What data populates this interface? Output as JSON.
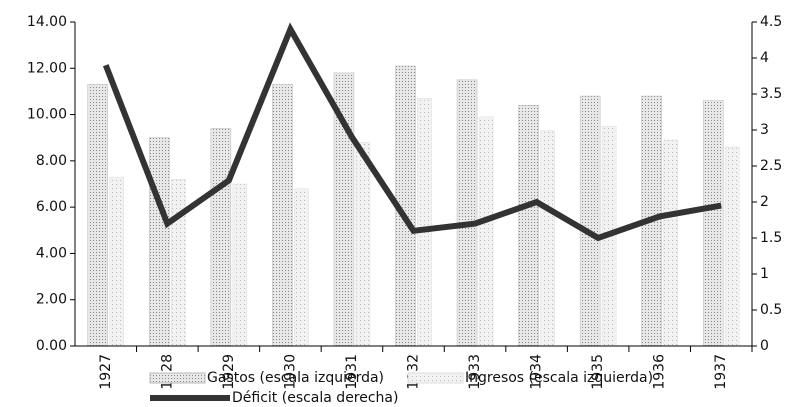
{
  "chart_data": {
    "type": "bar-line",
    "categories": [
      "1927",
      "1928",
      "1929",
      "1930",
      "1931",
      "1932",
      "1933",
      "1934",
      "1935",
      "1936",
      "1937"
    ],
    "series": [
      {
        "name": "Gastos (escala izquierda)",
        "color": "#b8b8b8",
        "type": "bar",
        "values": [
          11.3,
          9.0,
          9.4,
          11.3,
          11.8,
          12.1,
          11.5,
          10.4,
          10.8,
          10.8,
          10.6
        ]
      },
      {
        "name": "Ingresos (escala izquierda)",
        "color": "#dcdcdc",
        "type": "bar",
        "values": [
          7.3,
          7.2,
          7.0,
          6.8,
          8.8,
          10.7,
          9.9,
          9.3,
          9.5,
          8.9,
          8.6
        ]
      },
      {
        "name": "Déficit (escala derecha)",
        "color": "#333333",
        "type": "line",
        "axis": "y2",
        "values": [
          3.9,
          1.7,
          2.3,
          4.4,
          2.9,
          1.6,
          1.7,
          2.0,
          1.5,
          1.8,
          1.95
        ]
      }
    ],
    "ylim": [
      0,
      14
    ],
    "yticks": [
      {
        "value": 0,
        "label": "0.00"
      },
      {
        "value": 2,
        "label": "2.00"
      },
      {
        "value": 4,
        "label": "4.00"
      },
      {
        "value": 6,
        "label": "6.00"
      },
      {
        "value": 8,
        "label": "8.00"
      },
      {
        "value": 10,
        "label": "10.00"
      },
      {
        "value": 12,
        "label": "12.00"
      },
      {
        "value": 14,
        "label": "14.00"
      }
    ],
    "y2lim": [
      0,
      4.5
    ],
    "y2ticks": [
      0,
      0.5,
      1,
      1.5,
      2,
      2.5,
      3,
      3.5,
      4,
      4.5
    ],
    "grid": false,
    "legend": "bottom"
  }
}
